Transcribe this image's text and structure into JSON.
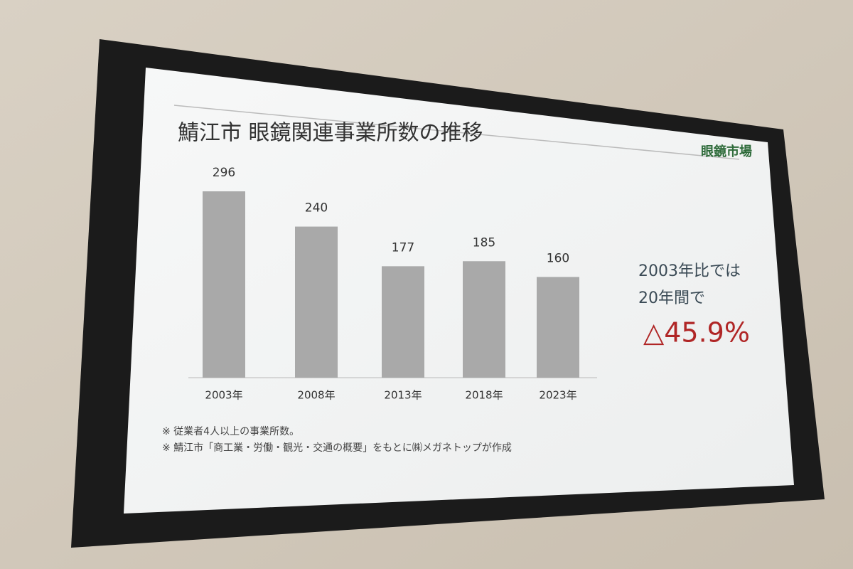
{
  "chart_data": {
    "type": "bar",
    "title": "鯖江市 眼鏡関連事業所数の推移",
    "categories": [
      "2003年",
      "2008年",
      "2013年",
      "2018年",
      "2023年"
    ],
    "values": [
      296,
      240,
      177,
      185,
      160
    ],
    "color": "#a9a9a9",
    "logo": "眼鏡市場",
    "annotation": [
      "2003年比では",
      "20年間で"
    ],
    "highlight": "△45.9%",
    "footnotes": [
      "※ 従業者4人以上の事業所数。",
      "※ 鯖江市「商工業・労働・観光・交通の概要」をもとに㈱メガネトップが作成"
    ]
  }
}
